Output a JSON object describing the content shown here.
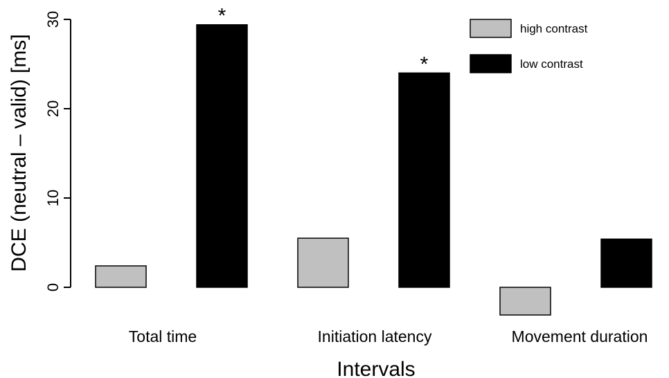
{
  "chart_data": {
    "type": "bar",
    "title": "",
    "xlabel": "Intervals",
    "ylabel": "DCE (neutral – valid) [ms]",
    "ylim": [
      -3.4,
      30
    ],
    "yticks": [
      0,
      10,
      20,
      30
    ],
    "grid": false,
    "legend_position": "top-right",
    "categories": [
      "Total time",
      "Initiation latency",
      "Movement duration"
    ],
    "series": [
      {
        "name": "high contrast",
        "color": "#c0c0c0",
        "values": [
          2.4,
          5.5,
          -3.1
        ]
      },
      {
        "name": "low contrast",
        "color": "#000000",
        "values": [
          29.4,
          24.0,
          5.4
        ]
      }
    ],
    "annotations": [
      {
        "text": "*",
        "category": "Total time",
        "series": "low contrast"
      },
      {
        "text": "*",
        "category": "Initiation latency",
        "series": "low contrast"
      }
    ]
  }
}
